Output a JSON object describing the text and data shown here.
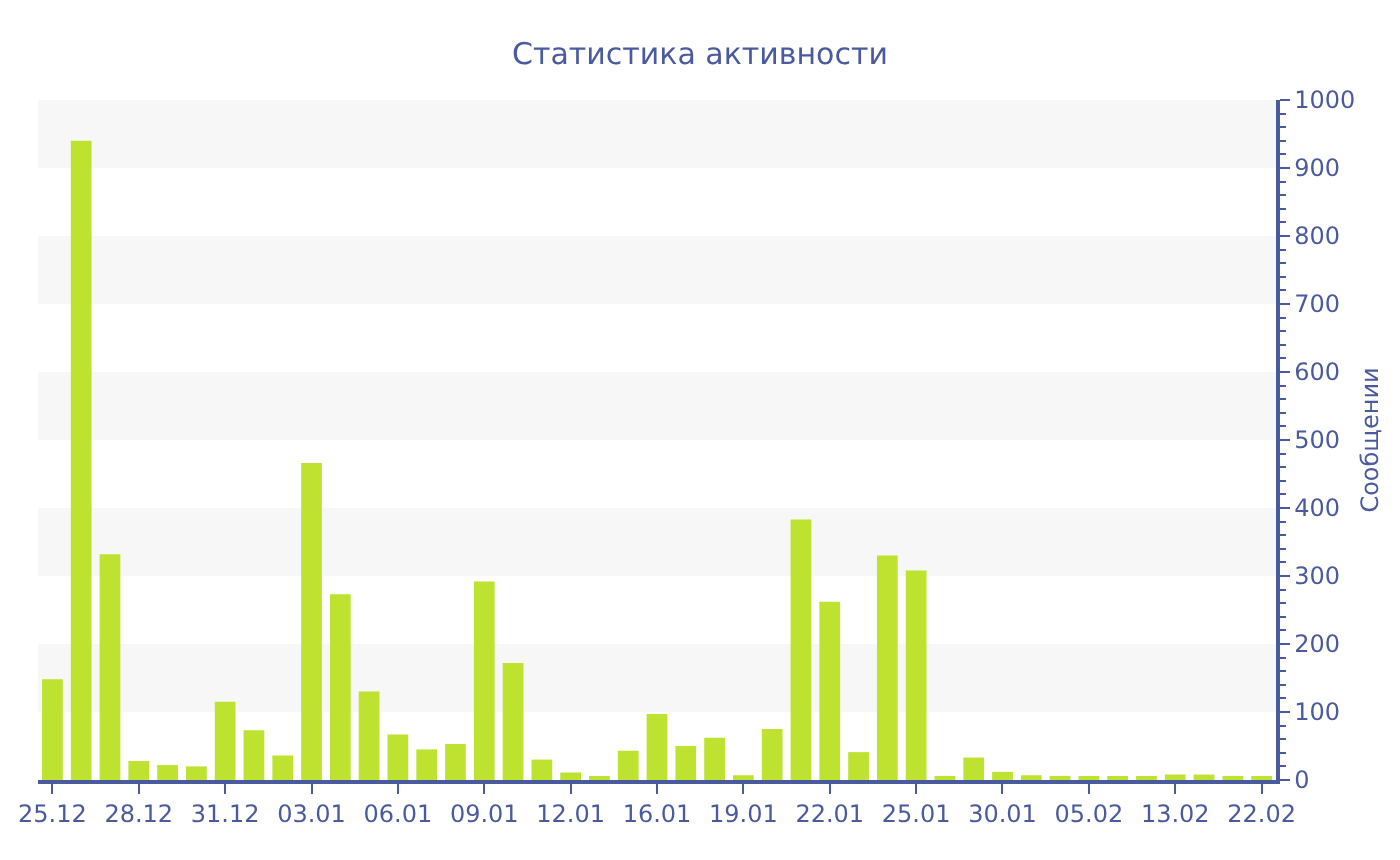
{
  "chart_data": {
    "type": "bar",
    "title": "Статистика активности",
    "ylabel": "Сообщении",
    "categories": [
      "25.12",
      null,
      null,
      "28.12",
      null,
      null,
      "31.12",
      null,
      null,
      "03.01",
      null,
      null,
      "06.01",
      null,
      null,
      "09.01",
      null,
      null,
      "12.01",
      null,
      null,
      "16.01",
      null,
      null,
      "19.01",
      null,
      null,
      "22.01",
      null,
      null,
      "25.01",
      null,
      null,
      "30.01",
      null,
      null,
      "05.02",
      null,
      null,
      "13.02",
      null,
      null,
      "22.02"
    ],
    "values": [
      148,
      940,
      332,
      28,
      22,
      20,
      115,
      73,
      36,
      466,
      273,
      130,
      67,
      45,
      53,
      292,
      172,
      30,
      11,
      4,
      43,
      97,
      50,
      62,
      7,
      75,
      383,
      262,
      41,
      330,
      308,
      6,
      33,
      12,
      7,
      6,
      4,
      4,
      5,
      8,
      8,
      6,
      5
    ],
    "color": "#bde22f",
    "ylim": [
      0,
      1000
    ],
    "yticks": [
      0,
      100,
      200,
      300,
      400,
      500,
      600,
      700,
      800,
      900,
      1000
    ],
    "grid": false,
    "bands": [
      {
        "axis": "y",
        "from": 100,
        "to": 200,
        "color": "#f7f7f7"
      },
      {
        "axis": "y",
        "from": 300,
        "to": 400,
        "color": "#f7f7f7"
      },
      {
        "axis": "y",
        "from": 500,
        "to": 600,
        "color": "#f7f7f7"
      },
      {
        "axis": "y",
        "from": 700,
        "to": 800,
        "color": "#f7f7f7"
      },
      {
        "axis": "y",
        "from": 900,
        "to": 1000,
        "color": "#f7f7f7"
      }
    ]
  }
}
